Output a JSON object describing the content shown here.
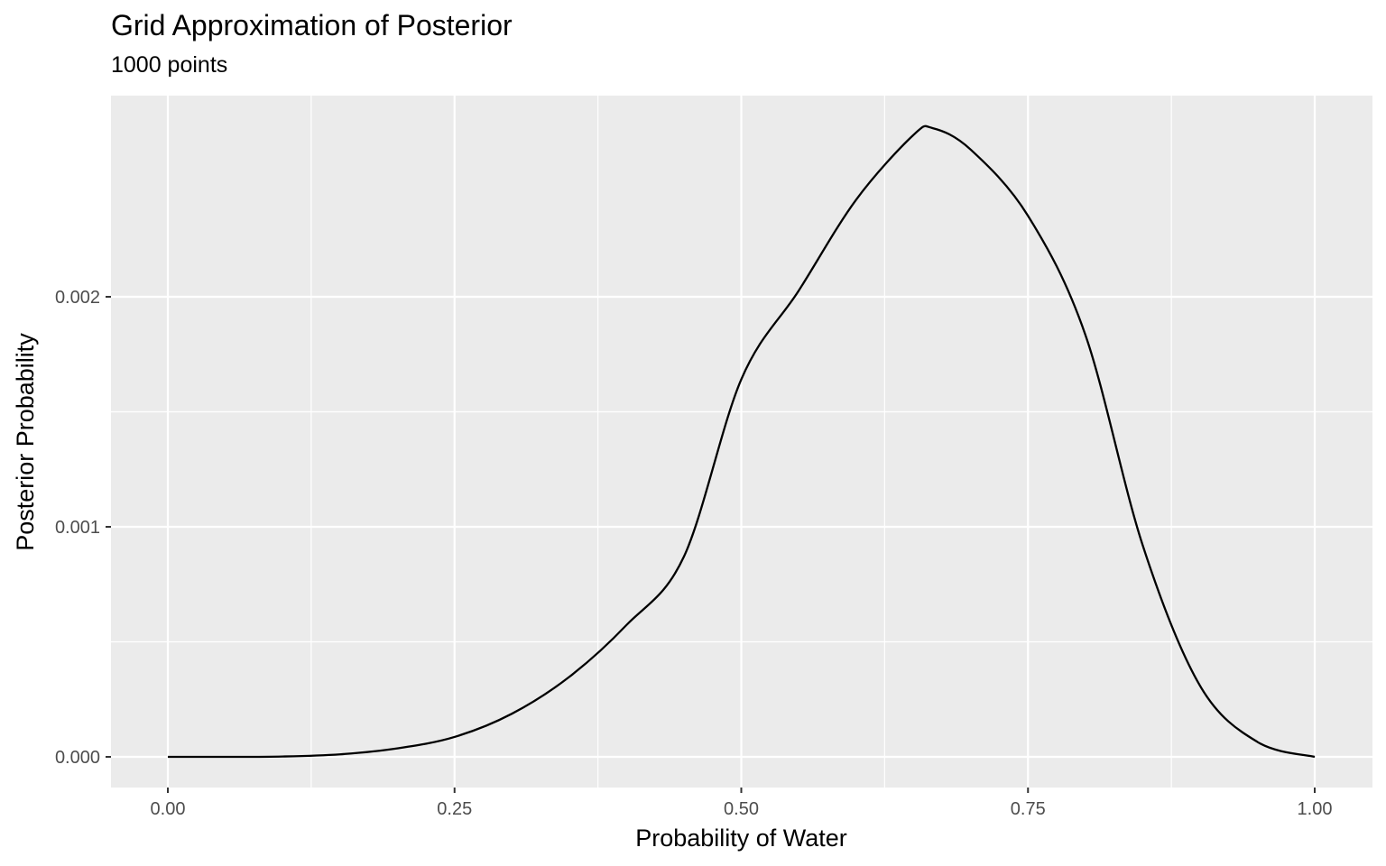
{
  "chart_data": {
    "type": "line",
    "title": "Grid Approximation of Posterior",
    "subtitle": "1000 points",
    "xlabel": "Probability of Water",
    "ylabel": "Posterior Probability",
    "xlim": [
      0,
      1
    ],
    "ylim": [
      -0.000137,
      0.002874
    ],
    "x_ticks": [
      0,
      0.25,
      0.5,
      0.75,
      1
    ],
    "x_tick_labels": [
      "0.00",
      "0.25",
      "0.50",
      "0.75",
      "1.00"
    ],
    "y_ticks": [
      0,
      0.001,
      0.002
    ],
    "y_tick_labels": [
      "0.000",
      "0.001",
      "0.002"
    ],
    "grid": true,
    "background": "#ebebeb",
    "grid_color": "#ffffff",
    "line_color": "#000000",
    "series": [
      {
        "x": [
          0.0,
          0.05,
          0.1,
          0.15,
          0.2,
          0.25,
          0.3,
          0.35,
          0.4,
          0.45,
          0.5,
          0.55,
          0.6,
          0.65,
          0.667,
          0.7,
          0.75,
          0.8,
          0.85,
          0.9,
          0.95,
          1.0
        ],
        "y": [
          0.0,
          0.0,
          1.6e-06,
          1.09e-05,
          3.67e-05,
          8.65e-05,
          0.0001875,
          0.0003475,
          0.0005735,
          0.0008705,
          0.001641,
          0.002026,
          0.002421,
          0.002703,
          0.002733,
          0.00264,
          0.002352,
          0.001835,
          0.00092,
          0.000309,
          6.5e-05,
          0.0
        ]
      }
    ]
  }
}
